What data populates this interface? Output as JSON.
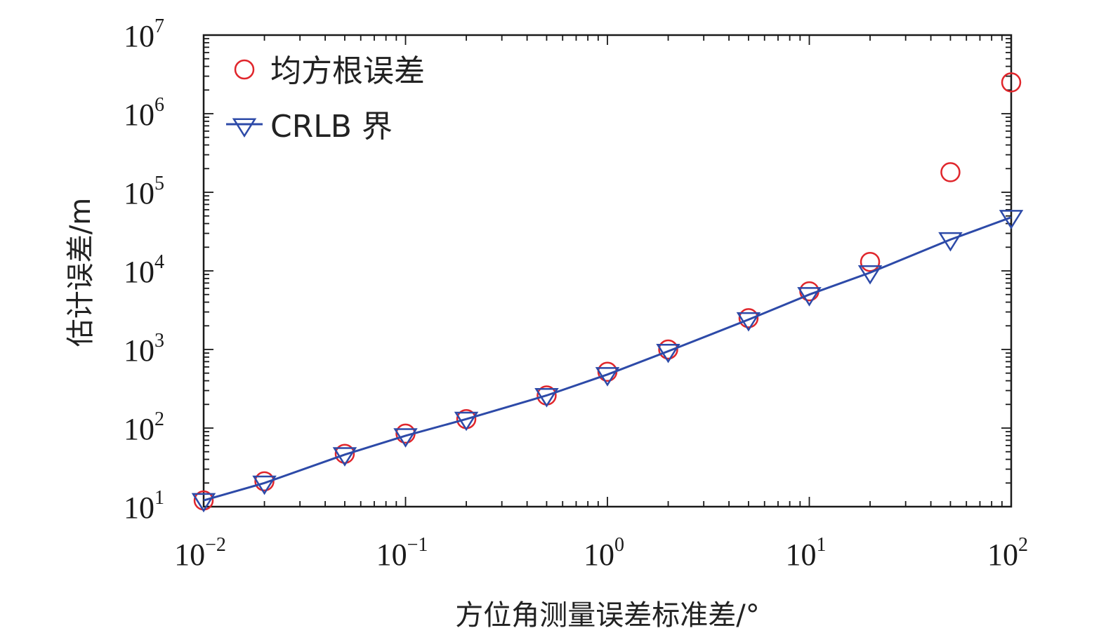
{
  "chart_data": {
    "type": "scatter",
    "x_scale": "log",
    "y_scale": "log",
    "xlim": [
      0.01,
      100
    ],
    "ylim": [
      10,
      10000000
    ],
    "xlabel": "方位角测量误差标准差/°",
    "ylabel": "估计误差/m",
    "x_ticks": [
      {
        "base": "10",
        "exp": "−2"
      },
      {
        "base": "10",
        "exp": "−1"
      },
      {
        "base": "10",
        "exp": "0"
      },
      {
        "base": "10",
        "exp": "1"
      },
      {
        "base": "10",
        "exp": "2"
      }
    ],
    "y_ticks": [
      {
        "base": "10",
        "exp": "1"
      },
      {
        "base": "10",
        "exp": "2"
      },
      {
        "base": "10",
        "exp": "3"
      },
      {
        "base": "10",
        "exp": "4"
      },
      {
        "base": "10",
        "exp": "5"
      },
      {
        "base": "10",
        "exp": "6"
      },
      {
        "base": "10",
        "exp": "7"
      }
    ],
    "legend_position": "top-left",
    "grid": false,
    "series": [
      {
        "name": "均方根误差",
        "marker": "circle",
        "line": false,
        "color": "#e0262c",
        "x": [
          0.01,
          0.02,
          0.05,
          0.1,
          0.2,
          0.5,
          1,
          2,
          5,
          10,
          20,
          50,
          100
        ],
        "y": [
          12,
          21,
          47,
          85,
          130,
          260,
          520,
          1000,
          2500,
          5500,
          13000,
          180000,
          2500000
        ]
      },
      {
        "name": "CRLB 界",
        "marker": "triangle-down",
        "line": true,
        "color": "#2d4aa8",
        "x": [
          0.01,
          0.02,
          0.05,
          0.1,
          0.2,
          0.5,
          1,
          2,
          5,
          10,
          20,
          50,
          100
        ],
        "y": [
          12,
          20,
          46,
          80,
          130,
          260,
          480,
          950,
          2400,
          5000,
          9500,
          25000,
          48000
        ]
      }
    ]
  }
}
